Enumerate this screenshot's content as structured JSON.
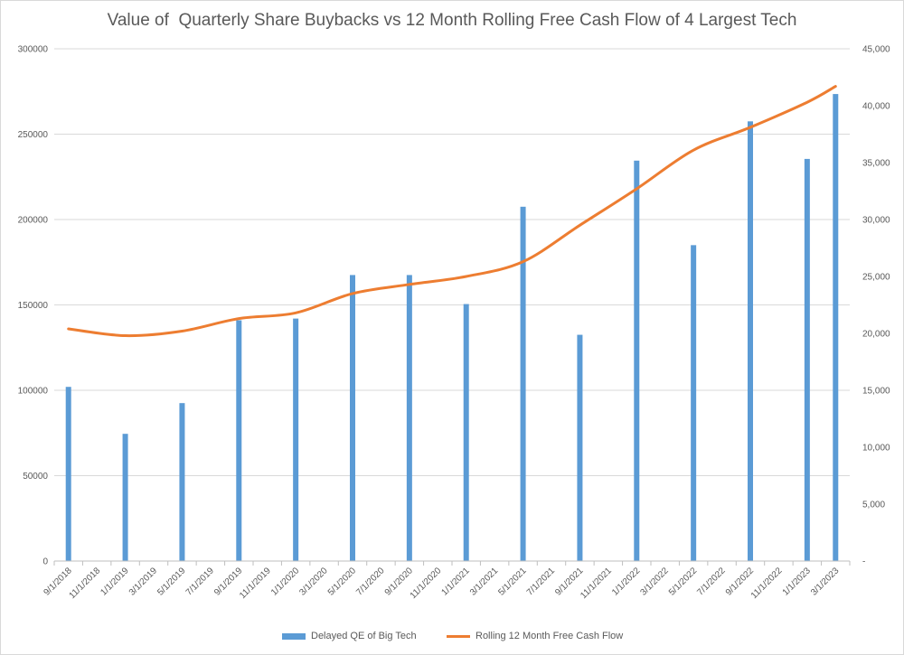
{
  "chart_data": {
    "type": "bar",
    "title": "Value of  Quarterly Share Buybacks vs 12 Month Rolling Free Cash Flow of 4 Largest Tech",
    "categories": [
      "9/1/2018",
      "11/1/2018",
      "1/1/2019",
      "3/1/2019",
      "5/1/2019",
      "7/1/2019",
      "9/1/2019",
      "11/1/2019",
      "1/1/2020",
      "3/1/2020",
      "5/1/2020",
      "7/1/2020",
      "9/1/2020",
      "11/1/2020",
      "1/1/2021",
      "3/1/2021",
      "5/1/2021",
      "7/1/2021",
      "9/1/2021",
      "11/1/2021",
      "1/1/2022",
      "3/1/2022",
      "5/1/2022",
      "7/1/2022",
      "9/1/2022",
      "11/1/2022",
      "1/1/2023",
      "3/1/2023"
    ],
    "primary_axis": {
      "ylim": [
        0,
        300000
      ],
      "ticks": [
        0,
        50000,
        100000,
        150000,
        200000,
        250000,
        300000
      ],
      "tick_labels": [
        "0",
        "50000",
        "100000",
        "150000",
        "200000",
        "250000",
        "300000"
      ]
    },
    "secondary_axis": {
      "ylim": [
        0,
        45000
      ],
      "ticks": [
        0,
        5000,
        10000,
        15000,
        20000,
        25000,
        30000,
        35000,
        40000,
        45000
      ],
      "tick_labels": [
        "-",
        "5,000",
        "10,000",
        "15,000",
        "20,000",
        "25,000",
        "30,000",
        "35,000",
        "40,000",
        "45,000"
      ]
    },
    "series": [
      {
        "name": "Delayed QE of Big Tech",
        "kind": "bar",
        "axis": "primary",
        "color": "#5b9bd5",
        "x": [
          "9/1/2018",
          "1/1/2019",
          "5/1/2019",
          "9/1/2019",
          "1/1/2020",
          "5/1/2020",
          "9/1/2020",
          "1/1/2021",
          "5/1/2021",
          "9/1/2021",
          "1/1/2022",
          "5/1/2022",
          "9/1/2022",
          "1/1/2023",
          "3/1/2023"
        ],
        "values": [
          102000,
          74500,
          92500,
          141000,
          142000,
          167500,
          167500,
          150500,
          207500,
          132500,
          234500,
          185000,
          257500,
          235500,
          273500
        ]
      },
      {
        "name": "Rolling 12 Month Free Cash Flow",
        "kind": "line",
        "axis": "secondary",
        "color": "#ed7d31",
        "x": [
          "9/1/2018",
          "1/1/2019",
          "5/1/2019",
          "9/1/2019",
          "1/1/2020",
          "5/1/2020",
          "9/1/2020",
          "1/1/2021",
          "5/1/2021",
          "9/1/2021",
          "1/1/2022",
          "5/1/2022",
          "9/1/2022",
          "1/1/2023",
          "3/1/2023"
        ],
        "values": [
          20400,
          19800,
          20200,
          21300,
          21800,
          23500,
          24300,
          25000,
          26300,
          29500,
          32700,
          36100,
          38100,
          40300,
          41700
        ]
      }
    ],
    "legend_position": "bottom",
    "grid": true
  }
}
